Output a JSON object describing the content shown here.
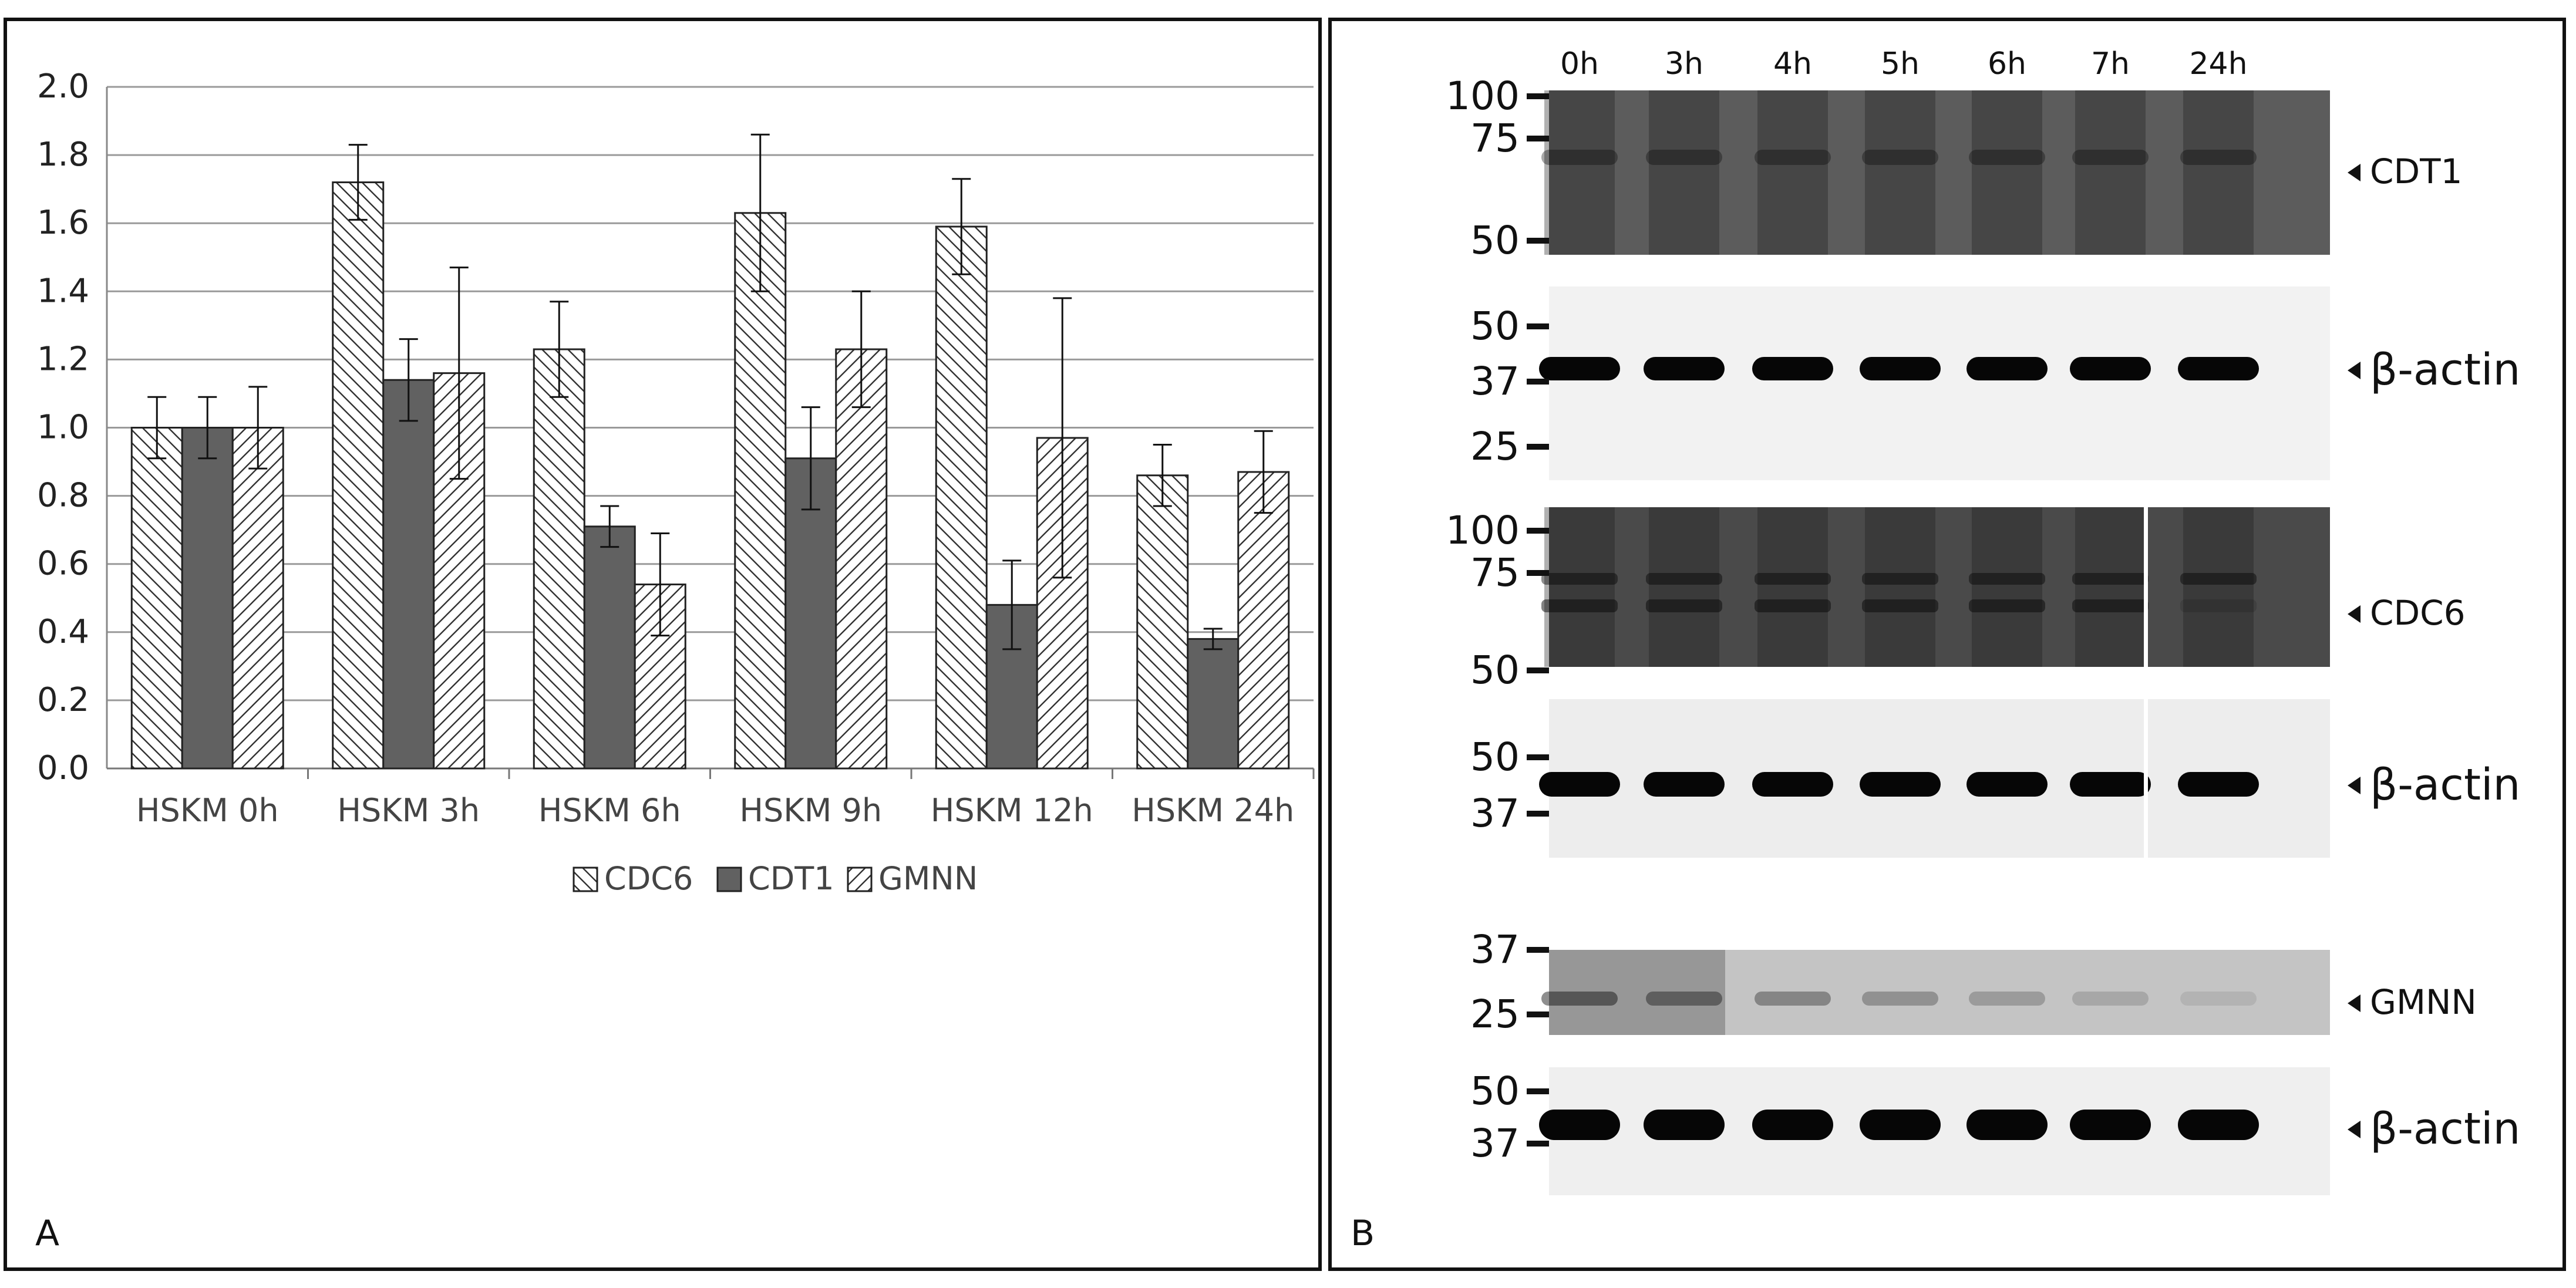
{
  "panel_a": {
    "label": "A",
    "chart_data": {
      "type": "bar",
      "categories": [
        "HSKM 0h",
        "HSKM 3h",
        "HSKM 6h",
        "HSKM 9h",
        "HSKM 12h",
        "HSKM 24h"
      ],
      "series": [
        {
          "name": "CDC6",
          "values": [
            1.0,
            1.72,
            1.23,
            1.63,
            1.59,
            0.86
          ],
          "errors": [
            0.09,
            0.11,
            0.14,
            0.23,
            0.14,
            0.09
          ],
          "pattern": "diagonal-down"
        },
        {
          "name": "CDT1",
          "values": [
            1.0,
            1.14,
            0.71,
            0.91,
            0.48,
            0.38
          ],
          "errors": [
            0.09,
            0.12,
            0.06,
            0.15,
            0.13,
            0.03
          ],
          "pattern": "solid",
          "color": "#616161"
        },
        {
          "name": "GMNN",
          "values": [
            1.0,
            1.16,
            0.54,
            1.23,
            0.97,
            0.87
          ],
          "errors": [
            0.12,
            0.31,
            0.15,
            0.17,
            0.41,
            0.12
          ],
          "pattern": "diagonal-up"
        }
      ],
      "yticks": [
        "0.0",
        "0.2",
        "0.4",
        "0.6",
        "0.8",
        "1.0",
        "1.2",
        "1.4",
        "1.6",
        "1.8",
        "2.0"
      ],
      "ylim": [
        0,
        2.0
      ],
      "grid": true,
      "legend": "bottom-center",
      "title": "",
      "xlabel": "",
      "ylabel": ""
    }
  },
  "panel_b": {
    "label": "B",
    "timepoints": [
      "0h",
      "3h",
      "4h",
      "5h",
      "6h",
      "7h",
      "24h"
    ],
    "blots": [
      {
        "name": "CDT1",
        "markers": [
          "100",
          "75",
          "50"
        ]
      },
      {
        "name": "β-actin",
        "markers": [
          "50",
          "37",
          "25"
        ]
      },
      {
        "name": "CDC6",
        "markers": [
          "100",
          "75",
          "50"
        ]
      },
      {
        "name": "β-actin",
        "markers": [
          "50",
          "37"
        ]
      },
      {
        "name": "GMNN",
        "markers": [
          "37",
          "25"
        ]
      },
      {
        "name": "β-actin",
        "markers": [
          "50",
          "37"
        ]
      }
    ]
  }
}
